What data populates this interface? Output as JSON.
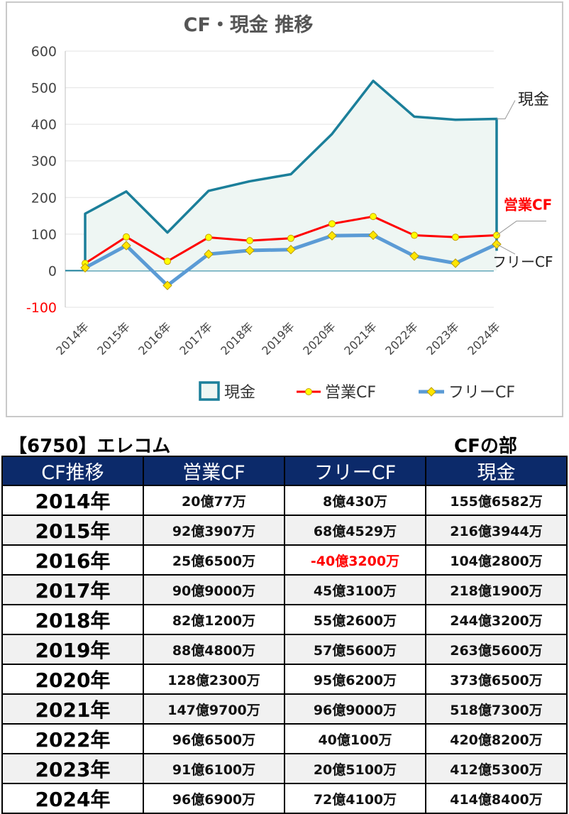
{
  "chart_data": {
    "type": "line",
    "title": "CF・現金 推移",
    "categories": [
      "2014年",
      "2015年",
      "2016年",
      "2017年",
      "2018年",
      "2019年",
      "2020年",
      "2021年",
      "2022年",
      "2023年",
      "2024年"
    ],
    "ylim": [
      -100,
      600
    ],
    "yticks": [
      600,
      500,
      400,
      300,
      200,
      100,
      0,
      -100
    ],
    "grid": true,
    "legend_position": "bottom",
    "series": [
      {
        "name": "現金",
        "type": "area",
        "color": "#1b7f9a",
        "values": [
          155.7,
          216.4,
          104.3,
          218.2,
          244.3,
          263.6,
          373.7,
          518.7,
          420.8,
          412.5,
          414.8
        ]
      },
      {
        "name": "営業CF",
        "type": "line",
        "color": "#ff0000",
        "values": [
          20.0,
          92.4,
          25.7,
          90.9,
          82.1,
          88.5,
          128.2,
          148.0,
          96.7,
          91.6,
          96.7
        ]
      },
      {
        "name": "フリーCF",
        "type": "line",
        "color": "#5b9bd5",
        "values": [
          8.0,
          68.5,
          -40.3,
          45.3,
          55.3,
          57.6,
          95.6,
          96.9,
          40.0,
          20.5,
          72.4
        ]
      }
    ],
    "annotations": [
      {
        "text": "現金",
        "series": "現金",
        "color": "#222222"
      },
      {
        "text": "営業CF",
        "series": "営業CF",
        "color": "#ff0000"
      },
      {
        "text": "フリーCF",
        "series": "フリーCF",
        "color": "#222222"
      }
    ]
  },
  "company": "【6750】エレコム",
  "section": "CFの部",
  "table": {
    "headers": [
      "CF推移",
      "営業CF",
      "フリーCF",
      "現金"
    ],
    "rows": [
      {
        "year": "2014年",
        "op": "20億77万",
        "free": "8億430万",
        "cash": "155億6582万"
      },
      {
        "year": "2015年",
        "op": "92億3907万",
        "free": "68億4529万",
        "cash": "216億3944万"
      },
      {
        "year": "2016年",
        "op": "25億6500万",
        "free": "-40億3200万",
        "cash": "104億2800万",
        "free_negative": true
      },
      {
        "year": "2017年",
        "op": "90億9000万",
        "free": "45億3100万",
        "cash": "218億1900万"
      },
      {
        "year": "2018年",
        "op": "82億1200万",
        "free": "55億2600万",
        "cash": "244億3200万"
      },
      {
        "year": "2019年",
        "op": "88億4800万",
        "free": "57億5600万",
        "cash": "263億5600万"
      },
      {
        "year": "2020年",
        "op": "128億2300万",
        "free": "95億6200万",
        "cash": "373億6500万"
      },
      {
        "year": "2021年",
        "op": "147億9700万",
        "free": "96億9000万",
        "cash": "518億7300万"
      },
      {
        "year": "2022年",
        "op": "96億6500万",
        "free": "40億100万",
        "cash": "420億8200万"
      },
      {
        "year": "2023年",
        "op": "91億6100万",
        "free": "20億5100万",
        "cash": "412億5300万"
      },
      {
        "year": "2024年",
        "op": "96億6900万",
        "free": "72億4100万",
        "cash": "414億8400万"
      }
    ]
  }
}
